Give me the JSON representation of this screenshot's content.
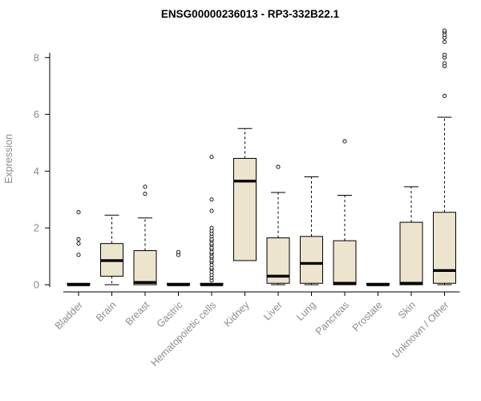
{
  "chart_data": {
    "type": "boxplot",
    "title": "ENSG00000236013 - RP3-332B22.1",
    "ylabel": "Expression",
    "ylim": [
      0,
      9.2
    ],
    "yticks": [
      0,
      2,
      4,
      6,
      8
    ],
    "box_fill": "#ECE4CC",
    "box_stroke": "#000000",
    "axis_text_color": "#8c8c8c",
    "categories": [
      "Bladder",
      "Brain",
      "Breast",
      "Gastric",
      "Hematopoietic cells",
      "Kidney",
      "Liver",
      "Lung",
      "Pancreas",
      "Prostate",
      "Skin",
      "Unknown / Other"
    ],
    "series": [
      {
        "category": "Bladder",
        "low": 0,
        "q1": 0,
        "median": 0,
        "q3": 0.05,
        "high": 0.05,
        "outliers": [
          1.05,
          1.45,
          1.6,
          2.55
        ]
      },
      {
        "category": "Brain",
        "low": 0,
        "q1": 0.3,
        "median": 0.85,
        "q3": 1.45,
        "high": 2.45,
        "outliers": []
      },
      {
        "category": "Breast",
        "low": 0,
        "q1": 0,
        "median": 0.08,
        "q3": 1.2,
        "high": 2.35,
        "outliers": [
          3.2,
          3.45
        ]
      },
      {
        "category": "Gastric",
        "low": 0,
        "q1": 0,
        "median": 0,
        "q3": 0.05,
        "high": 0.05,
        "outliers": [
          1.05,
          1.15
        ]
      },
      {
        "category": "Hematopoietic cells",
        "low": 0,
        "q1": 0,
        "median": 0,
        "q3": 0.05,
        "high": 0.05,
        "outliers": [
          0.15,
          0.25,
          0.35,
          0.45,
          0.55,
          0.6,
          0.7,
          0.8,
          0.85,
          0.95,
          1.0,
          1.1,
          1.15,
          1.25,
          1.3,
          1.4,
          1.45,
          1.55,
          1.6,
          1.7,
          1.8,
          1.9,
          2.0,
          2.6,
          3.0,
          4.5
        ]
      },
      {
        "category": "Kidney",
        "low": 0.85,
        "q1": 0.85,
        "median": 3.65,
        "q3": 4.45,
        "high": 5.5,
        "outliers": []
      },
      {
        "category": "Liver",
        "low": 0,
        "q1": 0.05,
        "median": 0.3,
        "q3": 1.65,
        "high": 3.25,
        "outliers": [
          4.15
        ]
      },
      {
        "category": "Lung",
        "low": 0,
        "q1": 0.05,
        "median": 0.75,
        "q3": 1.7,
        "high": 3.8,
        "outliers": []
      },
      {
        "category": "Pancreas",
        "low": 0,
        "q1": 0,
        "median": 0.05,
        "q3": 1.55,
        "high": 3.15,
        "outliers": [
          5.05
        ]
      },
      {
        "category": "Prostate",
        "low": 0,
        "q1": 0,
        "median": 0,
        "q3": 0.05,
        "high": 0.05,
        "outliers": []
      },
      {
        "category": "Skin",
        "low": 0,
        "q1": 0,
        "median": 0.05,
        "q3": 2.2,
        "high": 3.45,
        "outliers": []
      },
      {
        "category": "Unknown / Other",
        "low": 0,
        "q1": 0.05,
        "median": 0.5,
        "q3": 2.55,
        "high": 5.9,
        "outliers": [
          6.65,
          7.7,
          7.8,
          8.0,
          8.1,
          8.55,
          8.7,
          8.8,
          8.9,
          8.95
        ]
      }
    ]
  }
}
